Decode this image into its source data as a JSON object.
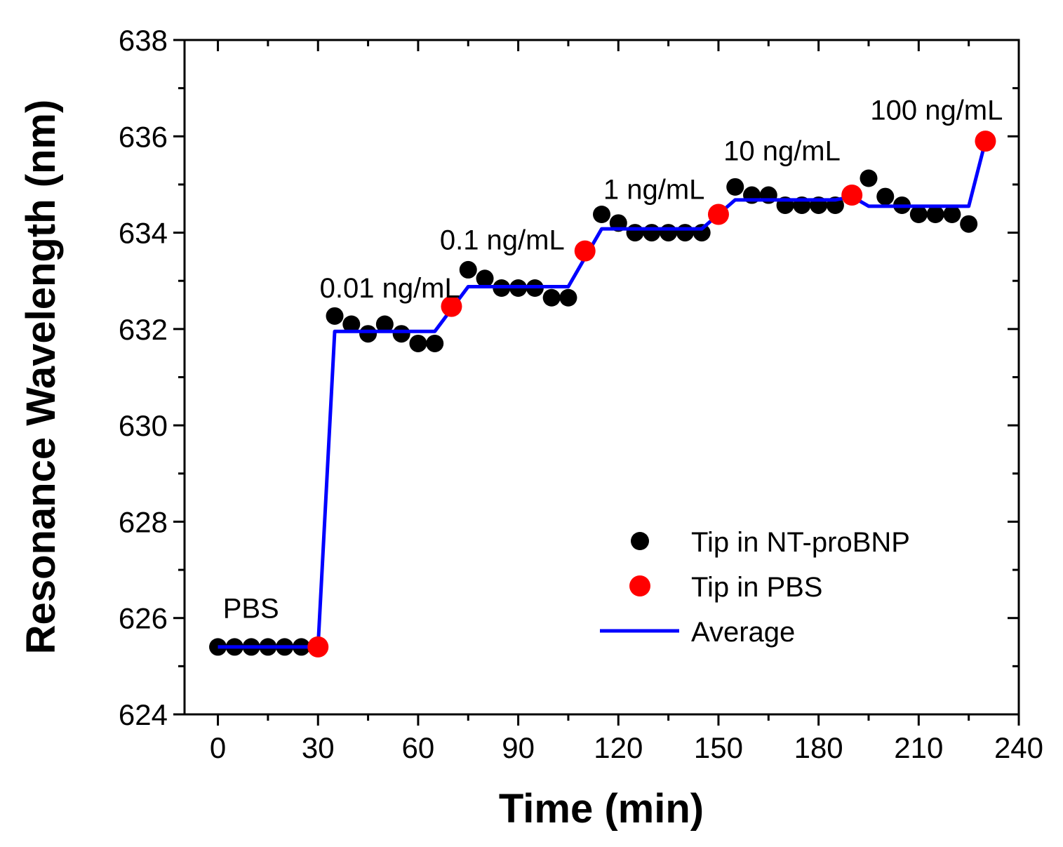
{
  "chart_data": {
    "type": "scatter",
    "title": "",
    "xlabel": "Time (min)",
    "ylabel": "Resonance Wavelength (nm)",
    "xlim": [
      -10,
      240
    ],
    "ylim": [
      624,
      638
    ],
    "xticks": [
      0,
      30,
      60,
      90,
      120,
      150,
      180,
      210,
      240
    ],
    "yticks": [
      624,
      626,
      628,
      630,
      632,
      634,
      636,
      638
    ],
    "legend_position": "bottom-right",
    "grid": false,
    "series": [
      {
        "name": "Tip in NT-proBNP",
        "kind": "scatter",
        "color": "#000000",
        "x": [
          0,
          5,
          10,
          15,
          20,
          25,
          35,
          40,
          45,
          50,
          55,
          60,
          65,
          75,
          80,
          85,
          90,
          95,
          100,
          105,
          115,
          120,
          125,
          130,
          135,
          140,
          145,
          155,
          160,
          165,
          170,
          175,
          180,
          185,
          195,
          200,
          205,
          210,
          215,
          220,
          225
        ],
        "y": [
          625.4,
          625.4,
          625.4,
          625.4,
          625.4,
          625.4,
          632.27,
          632.1,
          631.9,
          632.1,
          631.9,
          631.7,
          631.7,
          633.23,
          633.05,
          632.85,
          632.85,
          632.85,
          632.65,
          632.65,
          634.38,
          634.2,
          634.0,
          634.0,
          634.0,
          634.0,
          634.0,
          634.95,
          634.78,
          634.78,
          634.57,
          634.57,
          634.57,
          634.57,
          635.13,
          634.75,
          634.57,
          634.38,
          634.38,
          634.38,
          634.18
        ]
      },
      {
        "name": "Tip in PBS",
        "kind": "scatter",
        "color": "#ff0000",
        "x": [
          30,
          70,
          110,
          150,
          190,
          230
        ],
        "y": [
          625.4,
          632.47,
          633.62,
          634.38,
          634.78,
          635.9
        ]
      },
      {
        "name": "Average",
        "kind": "line",
        "color": "#0000ff",
        "x": [
          0,
          30,
          35,
          65,
          75,
          105,
          115,
          145,
          155,
          185,
          190,
          195,
          225,
          230
        ],
        "y": [
          625.4,
          625.4,
          631.95,
          631.95,
          632.88,
          632.88,
          634.08,
          634.08,
          634.68,
          634.68,
          634.75,
          634.55,
          634.55,
          635.9
        ]
      }
    ],
    "annotations": [
      {
        "text": "PBS",
        "x": 1.5,
        "y": 626.0
      },
      {
        "text": "0.01 ng/mL",
        "x": 30.5,
        "y": 632.65
      },
      {
        "text": "0.1 ng/mL",
        "x": 66.5,
        "y": 633.65
      },
      {
        "text": "1 ng/mL",
        "x": 115.5,
        "y": 634.7
      },
      {
        "text": "10 ng/mL",
        "x": 151.5,
        "y": 635.5
      },
      {
        "text": "100 ng/mL",
        "x": 195.5,
        "y": 636.35
      }
    ]
  }
}
